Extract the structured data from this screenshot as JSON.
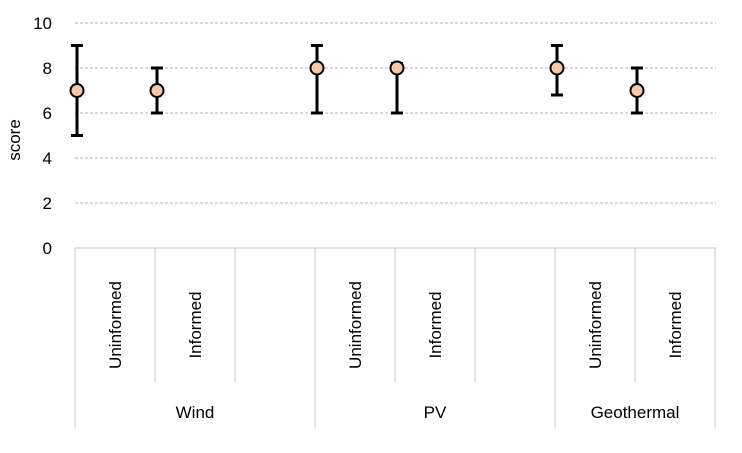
{
  "chart_data": {
    "type": "scatter",
    "ylabel": "score",
    "ylim": [
      0,
      10
    ],
    "yticks": [
      0,
      2,
      4,
      6,
      8,
      10
    ],
    "grid": "horizontal dashed",
    "marker_color": "#f8c9a6",
    "groups": [
      {
        "label": "Wind",
        "categories": [
          {
            "label": "Uninformed",
            "value": 7,
            "low": 5,
            "high": 9
          },
          {
            "label": "Informed",
            "value": 7,
            "low": 6,
            "high": 8
          },
          {
            "label": "",
            "value": null,
            "low": null,
            "high": null
          }
        ]
      },
      {
        "label": "PV",
        "categories": [
          {
            "label": "Uninformed",
            "value": 8,
            "low": 6,
            "high": 9
          },
          {
            "label": "Informed",
            "value": 8,
            "low": 6,
            "high": 8.2
          },
          {
            "label": "",
            "value": null,
            "low": null,
            "high": null
          }
        ]
      },
      {
        "label": "Geothermal",
        "categories": [
          {
            "label": "Uninformed",
            "value": 8,
            "low": 6.8,
            "high": 9
          },
          {
            "label": "Informed",
            "value": 7,
            "low": 6,
            "high": 8
          }
        ]
      }
    ]
  }
}
